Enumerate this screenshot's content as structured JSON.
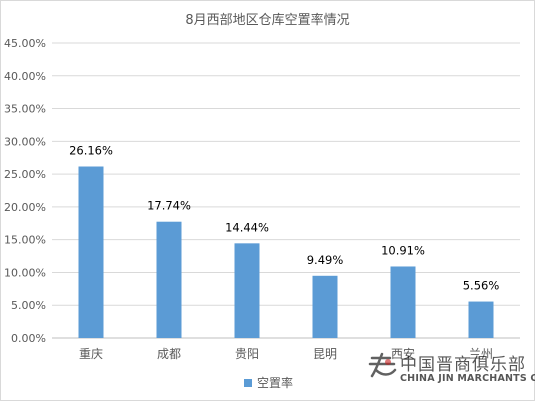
{
  "chart_data": {
    "type": "bar",
    "title": "8月西部地区仓库空置率情况",
    "categories": [
      "重庆",
      "成都",
      "贵阳",
      "昆明",
      "西安",
      "兰州"
    ],
    "series": [
      {
        "name": "空置率",
        "values": [
          26.16,
          17.74,
          14.44,
          9.49,
          10.91,
          5.56
        ],
        "labels": [
          "26.16%",
          "17.74%",
          "14.44%",
          "9.49%",
          "10.91%",
          "5.56%"
        ],
        "color": "#5b9bd5"
      }
    ],
    "ylim": [
      0,
      45
    ],
    "yticks": [
      0,
      5,
      10,
      15,
      20,
      25,
      30,
      35,
      40,
      45
    ],
    "ytick_labels": [
      "0.00%",
      "5.00%",
      "10.00%",
      "15.00%",
      "20.00%",
      "25.00%",
      "30.00%",
      "35.00%",
      "40.00%",
      "45.00%"
    ],
    "grid": true,
    "legend_position": "bottom"
  },
  "watermark": {
    "cn_text": "中国晋商俱乐部",
    "en_text": "CHINA JIN MARCHANTS CLUB"
  }
}
